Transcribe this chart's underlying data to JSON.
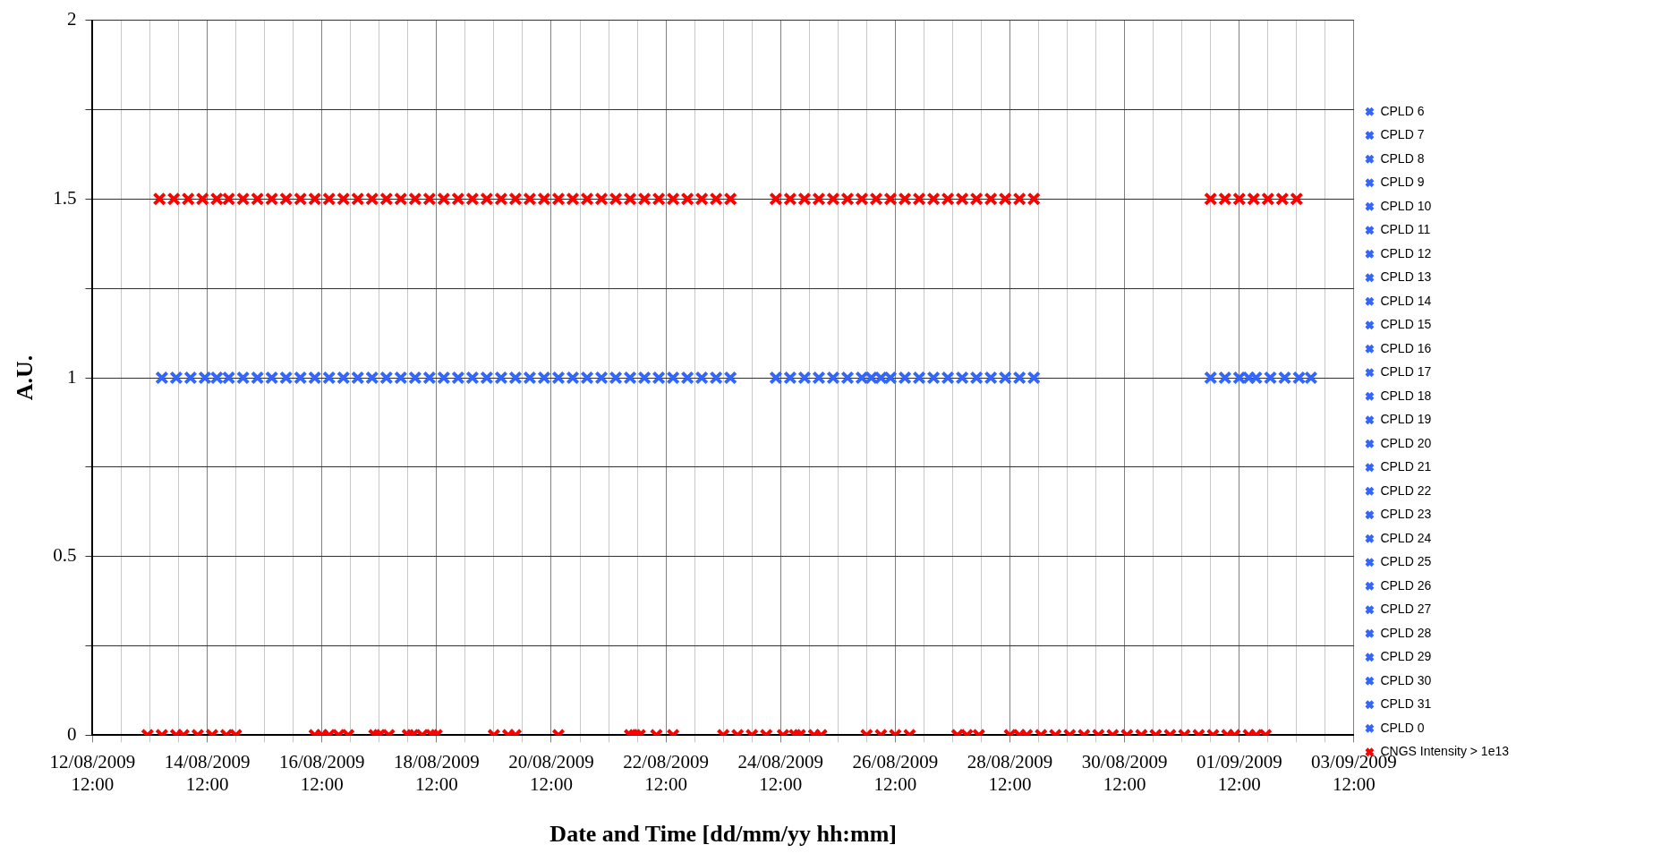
{
  "chart_data": {
    "type": "scatter",
    "xlabel": "Date and Time [dd/mm/yy hh:mm]",
    "ylabel": "A.U.",
    "xlim": [
      "2009-08-12T12:00",
      "2009-09-03T12:00"
    ],
    "xticks": [
      {
        "value": "2009-08-12T12:00",
        "label": "12/08/2009 12:00"
      },
      {
        "value": "2009-08-13T00:00",
        "label": null
      },
      {
        "value": "2009-08-13T12:00",
        "label": null
      },
      {
        "value": "2009-08-14T00:00",
        "label": null
      },
      {
        "value": "2009-08-14T12:00",
        "label": "14/08/2009 12:00"
      },
      {
        "value": "2009-08-15T00:00",
        "label": null
      },
      {
        "value": "2009-08-15T12:00",
        "label": null
      },
      {
        "value": "2009-08-16T00:00",
        "label": null
      },
      {
        "value": "2009-08-16T12:00",
        "label": "16/08/2009 12:00"
      },
      {
        "value": "2009-08-17T00:00",
        "label": null
      },
      {
        "value": "2009-08-17T12:00",
        "label": null
      },
      {
        "value": "2009-08-18T00:00",
        "label": null
      },
      {
        "value": "2009-08-18T12:00",
        "label": "18/08/2009 12:00"
      },
      {
        "value": "2009-08-19T00:00",
        "label": null
      },
      {
        "value": "2009-08-19T12:00",
        "label": null
      },
      {
        "value": "2009-08-20T00:00",
        "label": null
      },
      {
        "value": "2009-08-20T12:00",
        "label": "20/08/2009 12:00"
      },
      {
        "value": "2009-08-21T00:00",
        "label": null
      },
      {
        "value": "2009-08-21T12:00",
        "label": null
      },
      {
        "value": "2009-08-22T00:00",
        "label": null
      },
      {
        "value": "2009-08-22T12:00",
        "label": "22/08/2009 12:00"
      },
      {
        "value": "2009-08-23T00:00",
        "label": null
      },
      {
        "value": "2009-08-23T12:00",
        "label": null
      },
      {
        "value": "2009-08-24T00:00",
        "label": null
      },
      {
        "value": "2009-08-24T12:00",
        "label": "24/08/2009 12:00"
      },
      {
        "value": "2009-08-25T00:00",
        "label": null
      },
      {
        "value": "2009-08-25T12:00",
        "label": null
      },
      {
        "value": "2009-08-26T00:00",
        "label": null
      },
      {
        "value": "2009-08-26T12:00",
        "label": "26/08/2009 12:00"
      },
      {
        "value": "2009-08-27T00:00",
        "label": null
      },
      {
        "value": "2009-08-27T12:00",
        "label": null
      },
      {
        "value": "2009-08-28T00:00",
        "label": null
      },
      {
        "value": "2009-08-28T12:00",
        "label": "28/08/2009 12:00"
      },
      {
        "value": "2009-08-29T00:00",
        "label": null
      },
      {
        "value": "2009-08-29T12:00",
        "label": null
      },
      {
        "value": "2009-08-30T00:00",
        "label": null
      },
      {
        "value": "2009-08-30T12:00",
        "label": "30/08/2009 12:00"
      },
      {
        "value": "2009-08-31T00:00",
        "label": null
      },
      {
        "value": "2009-08-31T12:00",
        "label": null
      },
      {
        "value": "2009-09-01T00:00",
        "label": null
      },
      {
        "value": "2009-09-01T12:00",
        "label": "01/09/2009 12:00"
      },
      {
        "value": "2009-09-02T00:00",
        "label": null
      },
      {
        "value": "2009-09-02T12:00",
        "label": null
      },
      {
        "value": "2009-09-03T00:00",
        "label": null
      },
      {
        "value": "2009-09-03T12:00",
        "label": "03/09/2009 12:00"
      }
    ],
    "ylim": [
      0,
      2
    ],
    "yticks": [
      0,
      {
        "value": 0.25,
        "label": null
      },
      0.5,
      {
        "value": 0.75,
        "label": null
      },
      1,
      {
        "value": 1.25,
        "label": null
      },
      1.5,
      {
        "value": 1.75,
        "label": null
      },
      2
    ],
    "grid": true,
    "legend": "right",
    "marker": "cross",
    "series": [
      {
        "name": "CPLD 6",
        "color": "#3366ff"
      },
      {
        "name": "CPLD 7",
        "color": "#3366ff"
      },
      {
        "name": "CPLD 8",
        "color": "#3366ff"
      },
      {
        "name": "CPLD 9",
        "color": "#3366ff"
      },
      {
        "name": "CPLD 10",
        "color": "#3366ff"
      },
      {
        "name": "CPLD 11",
        "color": "#3366ff"
      },
      {
        "name": "CPLD 12",
        "color": "#3366ff"
      },
      {
        "name": "CPLD 13",
        "color": "#3366ff"
      },
      {
        "name": "CPLD 14",
        "color": "#3366ff"
      },
      {
        "name": "CPLD 15",
        "color": "#3366ff"
      },
      {
        "name": "CPLD 16",
        "color": "#3366ff"
      },
      {
        "name": "CPLD 17",
        "color": "#3366ff"
      },
      {
        "name": "CPLD 18",
        "color": "#3366ff"
      },
      {
        "name": "CPLD 19",
        "color": "#3366ff"
      },
      {
        "name": "CPLD 20",
        "color": "#3366ff"
      },
      {
        "name": "CPLD 21",
        "color": "#3366ff"
      },
      {
        "name": "CPLD 22",
        "color": "#3366ff"
      },
      {
        "name": "CPLD 23",
        "color": "#3366ff"
      },
      {
        "name": "CPLD 24",
        "color": "#3366ff"
      },
      {
        "name": "CPLD 25",
        "color": "#3366ff"
      },
      {
        "name": "CPLD 26",
        "color": "#3366ff"
      },
      {
        "name": "CPLD 27",
        "color": "#3366ff"
      },
      {
        "name": "CPLD 28",
        "color": "#3366ff"
      },
      {
        "name": "CPLD 29",
        "color": "#3366ff"
      },
      {
        "name": "CPLD 30",
        "color": "#3366ff"
      },
      {
        "name": "CPLD 31",
        "color": "#3366ff"
      },
      {
        "name": "CPLD 0",
        "color": "#3366ff",
        "x": [
          "2009-08-13T17:00",
          "2009-08-13T23:00",
          "2009-08-14T05:00",
          "2009-08-14T11:00",
          "2009-08-14T16:00",
          "2009-08-14T21:00",
          "2009-08-15T03:00",
          "2009-08-15T09:00",
          "2009-08-15T15:00",
          "2009-08-15T21:00",
          "2009-08-16T03:00",
          "2009-08-16T09:00",
          "2009-08-16T15:00",
          "2009-08-16T21:00",
          "2009-08-17T03:00",
          "2009-08-17T09:00",
          "2009-08-17T15:00",
          "2009-08-17T21:00",
          "2009-08-18T03:00",
          "2009-08-18T09:00",
          "2009-08-18T15:00",
          "2009-08-18T21:00",
          "2009-08-19T03:00",
          "2009-08-19T09:00",
          "2009-08-19T15:00",
          "2009-08-19T21:00",
          "2009-08-20T03:00",
          "2009-08-20T09:00",
          "2009-08-20T15:00",
          "2009-08-20T21:00",
          "2009-08-21T03:00",
          "2009-08-21T09:00",
          "2009-08-21T15:00",
          "2009-08-21T21:00",
          "2009-08-22T03:00",
          "2009-08-22T09:00",
          "2009-08-22T15:00",
          "2009-08-22T21:00",
          "2009-08-23T03:00",
          "2009-08-23T09:00",
          "2009-08-23T15:00",
          "2009-08-24T10:00",
          "2009-08-24T16:00",
          "2009-08-24T22:00",
          "2009-08-25T04:00",
          "2009-08-25T10:00",
          "2009-08-25T16:00",
          "2009-08-25T22:00",
          "2009-08-26T02:00",
          "2009-08-26T06:00",
          "2009-08-26T10:00",
          "2009-08-26T16:00",
          "2009-08-26T22:00",
          "2009-08-27T04:00",
          "2009-08-27T10:00",
          "2009-08-27T16:00",
          "2009-08-27T22:00",
          "2009-08-28T04:00",
          "2009-08-28T10:00",
          "2009-08-28T16:00",
          "2009-08-28T22:00",
          "2009-09-01T00:00",
          "2009-09-01T06:00",
          "2009-09-01T12:00",
          "2009-09-01T16:00",
          "2009-09-01T19:00",
          "2009-09-02T01:00",
          "2009-09-02T07:00",
          "2009-09-02T13:00",
          "2009-09-02T18:00"
        ],
        "values": [
          1,
          1,
          1,
          1,
          1,
          1,
          1,
          1,
          1,
          1,
          1,
          1,
          1,
          1,
          1,
          1,
          1,
          1,
          1,
          1,
          1,
          1,
          1,
          1,
          1,
          1,
          1,
          1,
          1,
          1,
          1,
          1,
          1,
          1,
          1,
          1,
          1,
          1,
          1,
          1,
          1,
          1,
          1,
          1,
          1,
          1,
          1,
          1,
          1,
          1,
          1,
          1,
          1,
          1,
          1,
          1,
          1,
          1,
          1,
          1,
          1,
          1,
          1,
          1,
          1,
          1,
          1,
          1,
          1,
          1
        ]
      },
      {
        "name": "CNGS Intensity > 1e13",
        "color": "#ff0000",
        "x": [
          "2009-08-13T16:00",
          "2009-08-13T22:00",
          "2009-08-14T04:00",
          "2009-08-14T10:00",
          "2009-08-14T16:00",
          "2009-08-14T21:00",
          "2009-08-15T03:00",
          "2009-08-15T09:00",
          "2009-08-15T15:00",
          "2009-08-15T21:00",
          "2009-08-16T03:00",
          "2009-08-16T09:00",
          "2009-08-16T15:00",
          "2009-08-16T21:00",
          "2009-08-17T03:00",
          "2009-08-17T09:00",
          "2009-08-17T15:00",
          "2009-08-17T21:00",
          "2009-08-18T03:00",
          "2009-08-18T09:00",
          "2009-08-18T15:00",
          "2009-08-18T21:00",
          "2009-08-19T03:00",
          "2009-08-19T09:00",
          "2009-08-19T15:00",
          "2009-08-19T21:00",
          "2009-08-20T03:00",
          "2009-08-20T09:00",
          "2009-08-20T15:00",
          "2009-08-20T21:00",
          "2009-08-21T03:00",
          "2009-08-21T09:00",
          "2009-08-21T15:00",
          "2009-08-21T21:00",
          "2009-08-22T03:00",
          "2009-08-22T09:00",
          "2009-08-22T15:00",
          "2009-08-22T21:00",
          "2009-08-23T03:00",
          "2009-08-23T09:00",
          "2009-08-23T15:00",
          "2009-08-24T10:00",
          "2009-08-24T16:00",
          "2009-08-24T22:00",
          "2009-08-25T04:00",
          "2009-08-25T10:00",
          "2009-08-25T16:00",
          "2009-08-25T22:00",
          "2009-08-26T04:00",
          "2009-08-26T10:00",
          "2009-08-26T16:00",
          "2009-08-26T22:00",
          "2009-08-27T04:00",
          "2009-08-27T10:00",
          "2009-08-27T16:00",
          "2009-08-27T22:00",
          "2009-08-28T04:00",
          "2009-08-28T10:00",
          "2009-08-28T16:00",
          "2009-08-28T22:00",
          "2009-09-01T00:00",
          "2009-09-01T06:00",
          "2009-09-01T12:00",
          "2009-09-01T18:00",
          "2009-09-02T00:00",
          "2009-09-02T06:00",
          "2009-09-02T12:00",
          "2009-08-13T11:00",
          "2009-08-13T17:00",
          "2009-08-13T23:00",
          "2009-08-14T02:00",
          "2009-08-14T08:00",
          "2009-08-14T14:00",
          "2009-08-14T20:00",
          "2009-08-15T00:00",
          "2009-08-16T09:00",
          "2009-08-16T12:00",
          "2009-08-16T15:00",
          "2009-08-16T19:00",
          "2009-08-16T23:00",
          "2009-08-17T10:00",
          "2009-08-17T12:00",
          "2009-08-17T16:00",
          "2009-08-18T00:00",
          "2009-08-18T02:00",
          "2009-08-18T06:00",
          "2009-08-18T10:00",
          "2009-08-18T12:00",
          "2009-08-19T12:00",
          "2009-08-19T18:00",
          "2009-08-19T21:00",
          "2009-08-20T15:00",
          "2009-08-21T21:00",
          "2009-08-21T23:00",
          "2009-08-22T01:00",
          "2009-08-22T08:00",
          "2009-08-22T15:00",
          "2009-08-23T12:00",
          "2009-08-23T18:00",
          "2009-08-24T00:00",
          "2009-08-24T06:00",
          "2009-08-24T13:00",
          "2009-08-24T18:00",
          "2009-08-24T20:00",
          "2009-08-25T02:00",
          "2009-08-25T05:00",
          "2009-08-26T00:00",
          "2009-08-26T06:00",
          "2009-08-26T12:00",
          "2009-08-26T18:00",
          "2009-08-27T14:00",
          "2009-08-27T18:00",
          "2009-08-27T23:00",
          "2009-08-28T12:00",
          "2009-08-28T16:00",
          "2009-08-28T19:00",
          "2009-08-29T01:00",
          "2009-08-29T07:00",
          "2009-08-29T13:00",
          "2009-08-29T19:00",
          "2009-08-30T01:00",
          "2009-08-30T07:00",
          "2009-08-30T13:00",
          "2009-08-30T19:00",
          "2009-08-31T01:00",
          "2009-08-31T07:00",
          "2009-08-31T13:00",
          "2009-08-31T19:00",
          "2009-09-01T01:00",
          "2009-09-01T07:00",
          "2009-09-01T10:00",
          "2009-09-01T16:00",
          "2009-09-01T19:00",
          "2009-09-01T23:00"
        ],
        "values": [
          1.5,
          1.5,
          1.5,
          1.5,
          1.5,
          1.5,
          1.5,
          1.5,
          1.5,
          1.5,
          1.5,
          1.5,
          1.5,
          1.5,
          1.5,
          1.5,
          1.5,
          1.5,
          1.5,
          1.5,
          1.5,
          1.5,
          1.5,
          1.5,
          1.5,
          1.5,
          1.5,
          1.5,
          1.5,
          1.5,
          1.5,
          1.5,
          1.5,
          1.5,
          1.5,
          1.5,
          1.5,
          1.5,
          1.5,
          1.5,
          1.5,
          1.5,
          1.5,
          1.5,
          1.5,
          1.5,
          1.5,
          1.5,
          1.5,
          1.5,
          1.5,
          1.5,
          1.5,
          1.5,
          1.5,
          1.5,
          1.5,
          1.5,
          1.5,
          1.5,
          1.5,
          1.5,
          1.5,
          1.5,
          1.5,
          1.5,
          1.5,
          0,
          0,
          0,
          0,
          0,
          0,
          0,
          0,
          0,
          0,
          0,
          0,
          0,
          0,
          0,
          0,
          0,
          0,
          0,
          0,
          0,
          0,
          0,
          0,
          0,
          0,
          0,
          0,
          0,
          0,
          0,
          0,
          0,
          0,
          0,
          0,
          0,
          0,
          0,
          0,
          0,
          0,
          0,
          0,
          0,
          0,
          0,
          0,
          0,
          0,
          0,
          0,
          0,
          0,
          0,
          0,
          0,
          0,
          0,
          0,
          0,
          0,
          0,
          0,
          0,
          0,
          0
        ]
      }
    ]
  }
}
